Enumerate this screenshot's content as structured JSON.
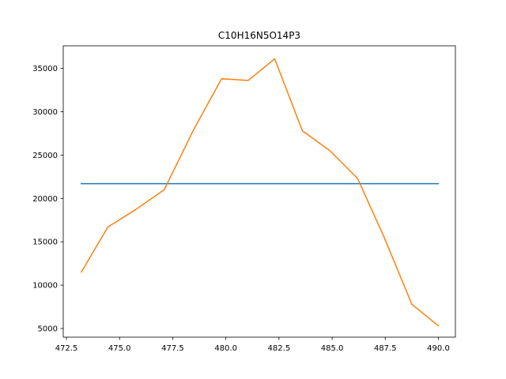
{
  "chart_data": {
    "type": "line",
    "title": "C10H16N5O14P3",
    "xlabel": "",
    "ylabel": "",
    "xlim": [
      472.35,
      490.8
    ],
    "ylim": [
      4000,
      37600
    ],
    "x_ticks": [
      472.5,
      475.0,
      477.5,
      480.0,
      482.5,
      485.0,
      487.5,
      490.0
    ],
    "x_tick_labels": [
      "472.5",
      "475.0",
      "477.5",
      "480.0",
      "482.5",
      "485.0",
      "487.5",
      "490.0"
    ],
    "y_ticks": [
      5000,
      10000,
      15000,
      20000,
      25000,
      30000,
      35000
    ],
    "y_tick_labels": [
      "5000",
      "10000",
      "15000",
      "20000",
      "25000",
      "30000",
      "35000"
    ],
    "grid": false,
    "legend": "none",
    "series": [
      {
        "color": "#1f77b4",
        "x": [
          473.2,
          490.0
        ],
        "y": [
          21700,
          21700
        ]
      },
      {
        "color": "#ff7f0e",
        "x": [
          473.2,
          474.45,
          475.75,
          477.1,
          478.5,
          479.8,
          481.05,
          482.3,
          483.6,
          484.9,
          486.2,
          487.45,
          488.75,
          490.0
        ],
        "y": [
          11500,
          16700,
          18700,
          21000,
          28000,
          33800,
          33600,
          36100,
          27800,
          25500,
          22300,
          15500,
          7800,
          5300
        ]
      }
    ]
  }
}
